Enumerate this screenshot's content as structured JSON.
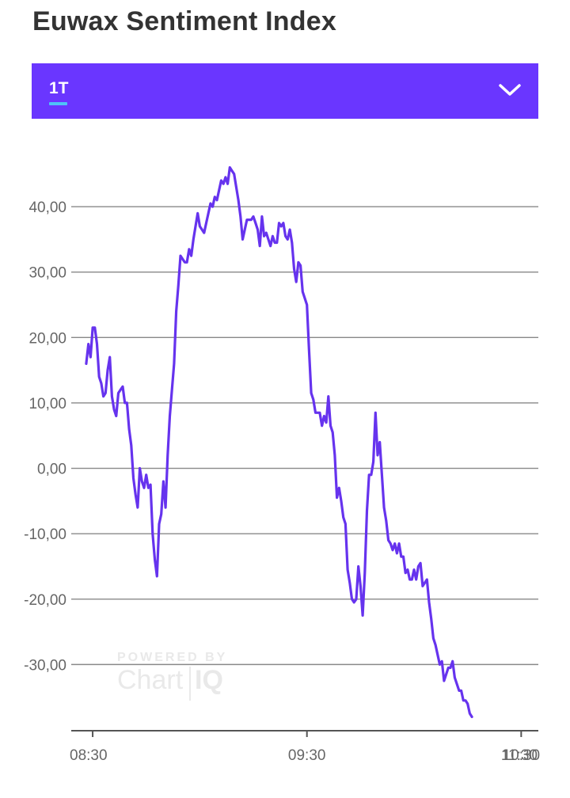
{
  "header": {
    "title": "Euwax Sentiment Index"
  },
  "period_selector": {
    "selected": "1T",
    "expand_icon": "chevron-down-icon"
  },
  "watermark": {
    "line1": "POWERED BY",
    "line2a": "Chart",
    "line2b": "IQ"
  },
  "colors": {
    "accent": "#6a36ff",
    "line": "#6633ee",
    "underline": "#4fc3f7",
    "grid": "#888888"
  },
  "chart_data": {
    "type": "line",
    "title": "",
    "xlabel": "",
    "ylabel": "",
    "ylim": [
      -40,
      48
    ],
    "xlim": [
      -0.1,
      2.08
    ],
    "y_ticks": [
      40,
      30,
      20,
      10,
      0,
      -10,
      -20,
      -30
    ],
    "y_tick_labels": [
      "40,00",
      "30,00",
      "20,00",
      "10,00",
      "0,00",
      "-10,00",
      "-20,00",
      "-30,00"
    ],
    "x_ticks": [
      0,
      1,
      2,
      3
    ],
    "x_tick_labels": [
      "08:30",
      "09:30",
      "10:30",
      "11:30"
    ],
    "grid": true,
    "x_unit": "hours after 08:30",
    "series": [
      {
        "name": "",
        "points": [
          [
            -0.03,
            16
          ],
          [
            -0.02,
            19
          ],
          [
            -0.01,
            17
          ],
          [
            0.0,
            21.5
          ],
          [
            0.01,
            21.5
          ],
          [
            0.02,
            19
          ],
          [
            0.03,
            14
          ],
          [
            0.04,
            13
          ],
          [
            0.05,
            11
          ],
          [
            0.06,
            11.5
          ],
          [
            0.07,
            15
          ],
          [
            0.08,
            17
          ],
          [
            0.09,
            11
          ],
          [
            0.1,
            9
          ],
          [
            0.11,
            8
          ],
          [
            0.12,
            11.5
          ],
          [
            0.13,
            12
          ],
          [
            0.14,
            12.5
          ],
          [
            0.15,
            10
          ],
          [
            0.16,
            10
          ],
          [
            0.17,
            6
          ],
          [
            0.18,
            3.5
          ],
          [
            0.19,
            -1.5
          ],
          [
            0.2,
            -4
          ],
          [
            0.21,
            -6
          ],
          [
            0.22,
            0
          ],
          [
            0.23,
            -2
          ],
          [
            0.24,
            -3
          ],
          [
            0.25,
            -1
          ],
          [
            0.26,
            -3
          ],
          [
            0.27,
            -2.5
          ],
          [
            0.28,
            -10
          ],
          [
            0.29,
            -14
          ],
          [
            0.3,
            -16.5
          ],
          [
            0.31,
            -8.5
          ],
          [
            0.32,
            -7
          ],
          [
            0.33,
            -2
          ],
          [
            0.34,
            -6
          ],
          [
            0.35,
            2
          ],
          [
            0.36,
            8
          ],
          [
            0.37,
            12
          ],
          [
            0.38,
            16
          ],
          [
            0.39,
            24
          ],
          [
            0.4,
            28
          ],
          [
            0.41,
            32.5
          ],
          [
            0.42,
            32
          ],
          [
            0.43,
            31.5
          ],
          [
            0.44,
            31.5
          ],
          [
            0.45,
            33.5
          ],
          [
            0.46,
            32.5
          ],
          [
            0.47,
            35
          ],
          [
            0.48,
            37
          ],
          [
            0.49,
            39
          ],
          [
            0.5,
            37
          ],
          [
            0.51,
            36.5
          ],
          [
            0.52,
            36
          ],
          [
            0.53,
            37.5
          ],
          [
            0.54,
            39
          ],
          [
            0.55,
            40.5
          ],
          [
            0.56,
            40
          ],
          [
            0.57,
            41.5
          ],
          [
            0.58,
            41
          ],
          [
            0.59,
            42.5
          ],
          [
            0.6,
            44
          ],
          [
            0.61,
            43.5
          ],
          [
            0.62,
            44.5
          ],
          [
            0.63,
            43.5
          ],
          [
            0.64,
            46
          ],
          [
            0.65,
            45.5
          ],
          [
            0.66,
            45
          ],
          [
            0.67,
            43
          ],
          [
            0.68,
            41
          ],
          [
            0.69,
            38.5
          ],
          [
            0.7,
            35
          ],
          [
            0.71,
            36.5
          ],
          [
            0.72,
            38
          ],
          [
            0.73,
            38
          ],
          [
            0.74,
            38
          ],
          [
            0.75,
            38.5
          ],
          [
            0.76,
            37.5
          ],
          [
            0.77,
            36.5
          ],
          [
            0.78,
            34
          ],
          [
            0.79,
            38.5
          ],
          [
            0.8,
            35.5
          ],
          [
            0.81,
            36
          ],
          [
            0.82,
            35
          ],
          [
            0.83,
            34
          ],
          [
            0.84,
            35.5
          ],
          [
            0.85,
            34.5
          ],
          [
            0.86,
            34.5
          ],
          [
            0.87,
            37.5
          ],
          [
            0.88,
            37
          ],
          [
            0.89,
            37.5
          ],
          [
            0.9,
            35.5
          ],
          [
            0.91,
            35
          ],
          [
            0.92,
            36.5
          ],
          [
            0.93,
            34.5
          ],
          [
            0.94,
            30.5
          ],
          [
            0.95,
            28.5
          ],
          [
            0.96,
            31.5
          ],
          [
            0.97,
            31
          ],
          [
            0.98,
            27
          ],
          [
            0.99,
            26
          ],
          [
            1.0,
            25
          ],
          [
            1.01,
            18
          ],
          [
            1.02,
            11.5
          ],
          [
            1.03,
            10.5
          ],
          [
            1.04,
            8.5
          ],
          [
            1.05,
            8.5
          ],
          [
            1.06,
            8.5
          ],
          [
            1.07,
            6.5
          ],
          [
            1.08,
            8
          ],
          [
            1.09,
            7
          ],
          [
            1.1,
            11
          ],
          [
            1.11,
            6.5
          ],
          [
            1.12,
            5.5
          ],
          [
            1.13,
            2
          ],
          [
            1.14,
            -4.5
          ],
          [
            1.15,
            -3
          ],
          [
            1.16,
            -5
          ],
          [
            1.17,
            -7.5
          ],
          [
            1.18,
            -8.5
          ],
          [
            1.19,
            -15.5
          ],
          [
            1.2,
            -17.5
          ],
          [
            1.21,
            -20
          ],
          [
            1.22,
            -20.5
          ],
          [
            1.23,
            -20
          ],
          [
            1.24,
            -15
          ],
          [
            1.25,
            -18
          ],
          [
            1.26,
            -22.5
          ],
          [
            1.27,
            -16
          ],
          [
            1.28,
            -6.5
          ],
          [
            1.29,
            -1
          ],
          [
            1.3,
            -1
          ],
          [
            1.31,
            1
          ],
          [
            1.32,
            8.5
          ],
          [
            1.33,
            2
          ],
          [
            1.34,
            4
          ],
          [
            1.35,
            -1
          ],
          [
            1.36,
            -6
          ],
          [
            1.37,
            -8
          ],
          [
            1.38,
            -11
          ],
          [
            1.39,
            -11.5
          ],
          [
            1.4,
            -12.5
          ],
          [
            1.41,
            -11.5
          ],
          [
            1.42,
            -13
          ],
          [
            1.43,
            -11.5
          ],
          [
            1.44,
            -13.5
          ],
          [
            1.45,
            -13.5
          ],
          [
            1.46,
            -16
          ],
          [
            1.47,
            -15.5
          ],
          [
            1.48,
            -17
          ],
          [
            1.49,
            -17
          ],
          [
            1.5,
            -15.5
          ],
          [
            1.51,
            -17
          ],
          [
            1.52,
            -15
          ],
          [
            1.53,
            -14.5
          ],
          [
            1.54,
            -18
          ],
          [
            1.55,
            -17.5
          ],
          [
            1.56,
            -17
          ],
          [
            1.57,
            -20.5
          ],
          [
            1.58,
            -23
          ],
          [
            1.59,
            -26
          ],
          [
            1.6,
            -27
          ],
          [
            1.61,
            -28.5
          ],
          [
            1.62,
            -30
          ],
          [
            1.63,
            -29.5
          ],
          [
            1.64,
            -32.5
          ],
          [
            1.65,
            -31.5
          ],
          [
            1.66,
            -30.5
          ],
          [
            1.67,
            -30.5
          ],
          [
            1.68,
            -29.5
          ],
          [
            1.69,
            -32
          ],
          [
            1.7,
            -33
          ],
          [
            1.71,
            -34
          ],
          [
            1.72,
            -34
          ],
          [
            1.73,
            -35.5
          ],
          [
            1.74,
            -35.5
          ],
          [
            1.75,
            -36
          ],
          [
            1.76,
            -37.5
          ],
          [
            1.77,
            -38
          ]
        ]
      }
    ]
  }
}
